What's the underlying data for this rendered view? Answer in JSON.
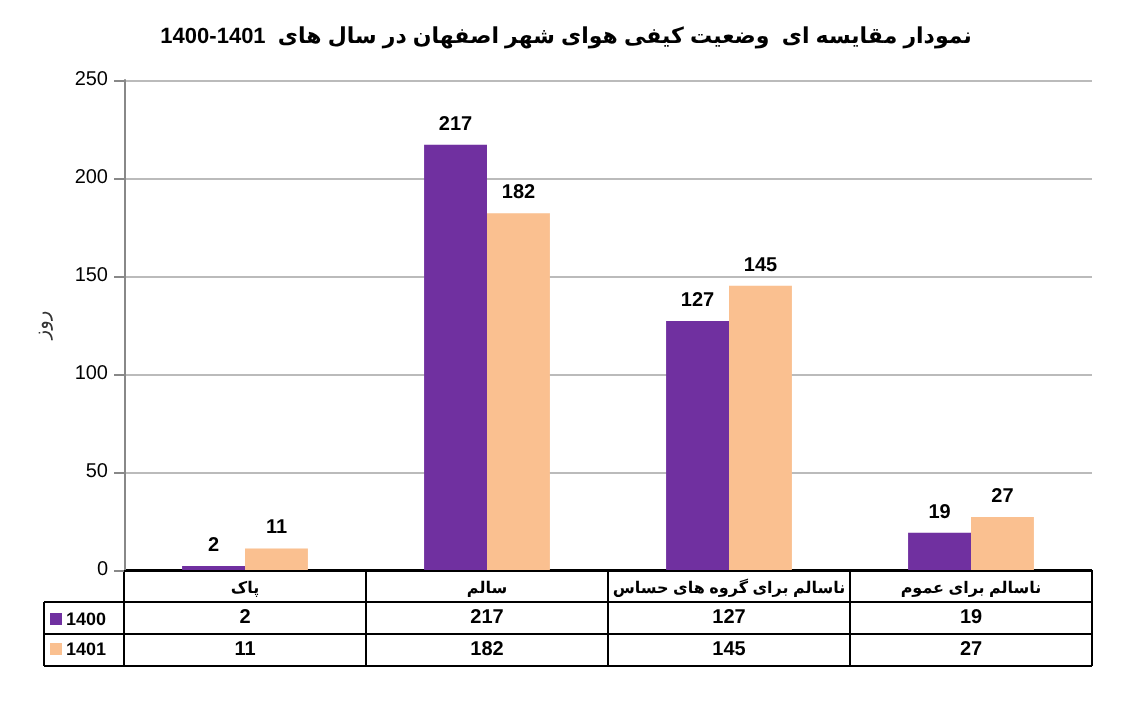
{
  "chart_data": {
    "type": "bar",
    "title": "نمودار مقایسه ای  وضعیت کیفی هوای شهر اصفهان در سال های  1401-1400",
    "ylabel": "روز",
    "categories": [
      "پاک",
      "سالم",
      "ناسالم برای گروه های حساس",
      "ناسالم برای عموم"
    ],
    "series": [
      {
        "name": "1400",
        "color": "#7030a0",
        "values": [
          2,
          217,
          127,
          19
        ],
        "value_labels": [
          "2",
          "217",
          "127",
          "19"
        ]
      },
      {
        "name": "1401",
        "color": "#fac090",
        "values": [
          11,
          182,
          145,
          27
        ],
        "value_labels": [
          "11",
          "182",
          "145",
          "27"
        ]
      }
    ],
    "ylim": [
      0,
      250
    ],
    "yticks": [
      0,
      50,
      100,
      150,
      200,
      250
    ],
    "grid": "y",
    "legend": "bottom left",
    "annotations": [
      "2",
      "217",
      "127",
      "19",
      "11",
      "182",
      "145",
      "27"
    ]
  }
}
